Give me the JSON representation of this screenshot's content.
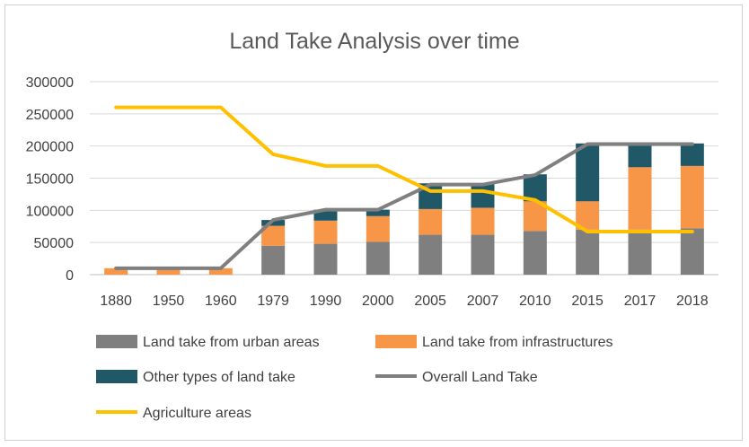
{
  "chart_data": {
    "type": "bar",
    "title": "Land Take Analysis over time",
    "xlabel": "",
    "ylabel": "",
    "categories": [
      "1880",
      "1950",
      "1960",
      "1979",
      "1990",
      "2000",
      "2005",
      "2007",
      "2010",
      "2015",
      "2017",
      "2018"
    ],
    "ylim": [
      0,
      300000
    ],
    "yticks": [
      "0",
      "50000",
      "100000",
      "150000",
      "200000",
      "250000",
      "300000"
    ],
    "grid": true,
    "legend_position": "bottom",
    "stacked_series": [
      {
        "name": "Land take from urban areas",
        "color": "#7f7f7f",
        "values": [
          0,
          0,
          0,
          45000,
          48000,
          51000,
          62000,
          62000,
          68000,
          70000,
          70000,
          72000
        ]
      },
      {
        "name": "Land take from infrastructures",
        "color": "#f79646",
        "values": [
          10000,
          10000,
          10000,
          31000,
          36000,
          40000,
          40000,
          42000,
          46000,
          44000,
          97000,
          97000
        ]
      },
      {
        "name": "Other types of land take",
        "color": "#215868",
        "values": [
          0,
          0,
          0,
          9000,
          17000,
          10000,
          40000,
          37000,
          42000,
          90000,
          36000,
          35000
        ]
      }
    ],
    "line_series": [
      {
        "name": "Overall Land Take",
        "color": "#7f7f7f",
        "values": [
          10000,
          10000,
          10000,
          85000,
          101000,
          101000,
          140000,
          140000,
          155000,
          203000,
          203000,
          203000
        ]
      },
      {
        "name": "Agriculture areas",
        "color": "#ffc000",
        "values": [
          260000,
          260000,
          260000,
          187000,
          169000,
          169000,
          130000,
          130000,
          116000,
          67000,
          67000,
          67000
        ]
      }
    ]
  }
}
